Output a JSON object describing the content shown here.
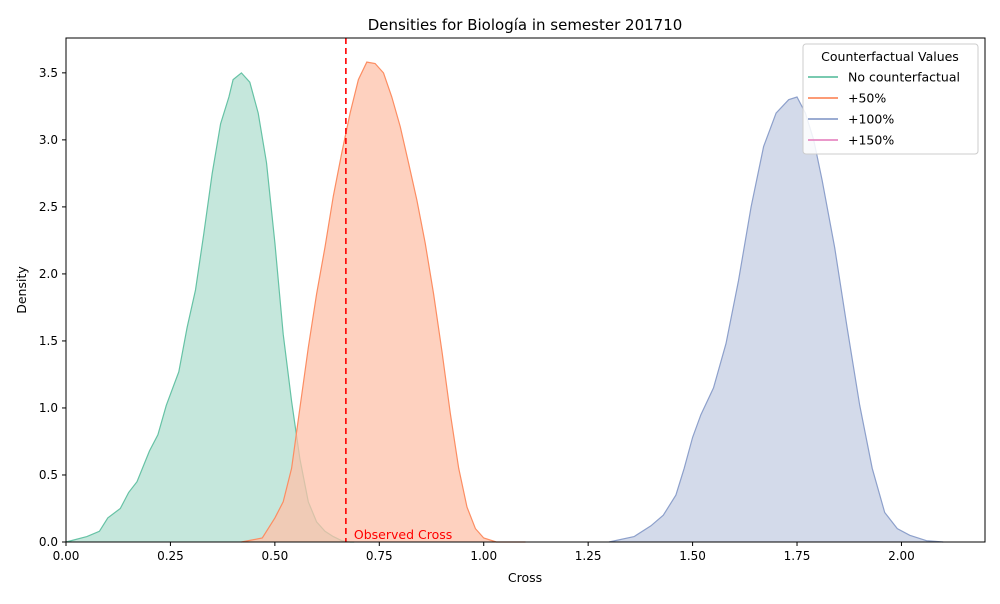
{
  "chart_data": {
    "type": "area",
    "title": "Densities for Biología in semester 201710",
    "xlabel": "Cross",
    "ylabel": "Density",
    "xlim": [
      0.0,
      2.2
    ],
    "ylim": [
      0.0,
      3.76
    ],
    "x_ticks": [
      0.0,
      0.25,
      0.5,
      0.75,
      1.0,
      1.25,
      1.5,
      1.75,
      2.0
    ],
    "x_tick_labels": [
      "0.00",
      "0.25",
      "0.50",
      "0.75",
      "1.00",
      "1.25",
      "1.50",
      "1.75",
      "2.00"
    ],
    "y_ticks": [
      0.0,
      0.5,
      1.0,
      1.5,
      2.0,
      2.5,
      3.0,
      3.5
    ],
    "y_tick_labels": [
      "0.0",
      "0.5",
      "1.0",
      "1.5",
      "2.0",
      "2.5",
      "3.0",
      "3.5"
    ],
    "grid": false,
    "legend": {
      "title": "Counterfactual Values",
      "placement": "top-right",
      "entries": [
        {
          "label": "No counterfactual",
          "color": "#66c2a5"
        },
        {
          "label": "+50%",
          "color": "#fc8d62"
        },
        {
          "label": "+100%",
          "color": "#8da0cb"
        },
        {
          "label": "+150%",
          "color": "#e78ac3"
        }
      ]
    },
    "series": [
      {
        "name": "No counterfactual",
        "color": "#66c2a5",
        "fill": "#b2dfd0",
        "x": [
          0.0,
          0.05,
          0.08,
          0.1,
          0.13,
          0.15,
          0.17,
          0.2,
          0.22,
          0.24,
          0.27,
          0.29,
          0.31,
          0.33,
          0.35,
          0.37,
          0.39,
          0.4,
          0.42,
          0.44,
          0.46,
          0.48,
          0.5,
          0.52,
          0.54,
          0.56,
          0.58,
          0.6,
          0.62,
          0.64,
          0.66,
          0.68,
          0.69
        ],
        "y": [
          0.0,
          0.04,
          0.08,
          0.18,
          0.25,
          0.37,
          0.45,
          0.68,
          0.8,
          1.02,
          1.27,
          1.6,
          1.88,
          2.3,
          2.75,
          3.12,
          3.32,
          3.45,
          3.5,
          3.43,
          3.2,
          2.83,
          2.23,
          1.55,
          1.05,
          0.62,
          0.3,
          0.15,
          0.08,
          0.04,
          0.01,
          0.0,
          0.0
        ]
      },
      {
        "name": "+50%",
        "color": "#fc8d62",
        "fill": "#fdc2aa",
        "x": [
          0.42,
          0.47,
          0.5,
          0.52,
          0.54,
          0.56,
          0.58,
          0.6,
          0.62,
          0.64,
          0.66,
          0.68,
          0.7,
          0.72,
          0.74,
          0.76,
          0.78,
          0.8,
          0.82,
          0.84,
          0.86,
          0.88,
          0.9,
          0.92,
          0.94,
          0.96,
          0.98,
          1.0,
          1.03,
          1.06,
          1.1
        ],
        "y": [
          0.0,
          0.03,
          0.18,
          0.3,
          0.55,
          1.0,
          1.45,
          1.85,
          2.2,
          2.58,
          2.9,
          3.2,
          3.45,
          3.58,
          3.57,
          3.5,
          3.32,
          3.1,
          2.83,
          2.55,
          2.23,
          1.85,
          1.42,
          0.96,
          0.55,
          0.26,
          0.1,
          0.03,
          0.0,
          0.0,
          0.0
        ]
      },
      {
        "name": "+100%",
        "color": "#8da0cb",
        "fill": "#c4cde3",
        "x": [
          1.3,
          1.36,
          1.4,
          1.43,
          1.46,
          1.48,
          1.5,
          1.52,
          1.55,
          1.58,
          1.61,
          1.64,
          1.67,
          1.7,
          1.73,
          1.75,
          1.77,
          1.79,
          1.81,
          1.84,
          1.87,
          1.9,
          1.93,
          1.96,
          1.99,
          2.02,
          2.06,
          2.1
        ],
        "y": [
          0.0,
          0.04,
          0.12,
          0.2,
          0.35,
          0.55,
          0.78,
          0.95,
          1.15,
          1.48,
          1.95,
          2.5,
          2.95,
          3.2,
          3.3,
          3.32,
          3.2,
          3.0,
          2.7,
          2.2,
          1.6,
          1.02,
          0.55,
          0.22,
          0.1,
          0.05,
          0.01,
          0.0
        ]
      }
    ],
    "observed": {
      "x": 0.67,
      "label": "Observed Cross",
      "color": "#ff0000"
    }
  }
}
